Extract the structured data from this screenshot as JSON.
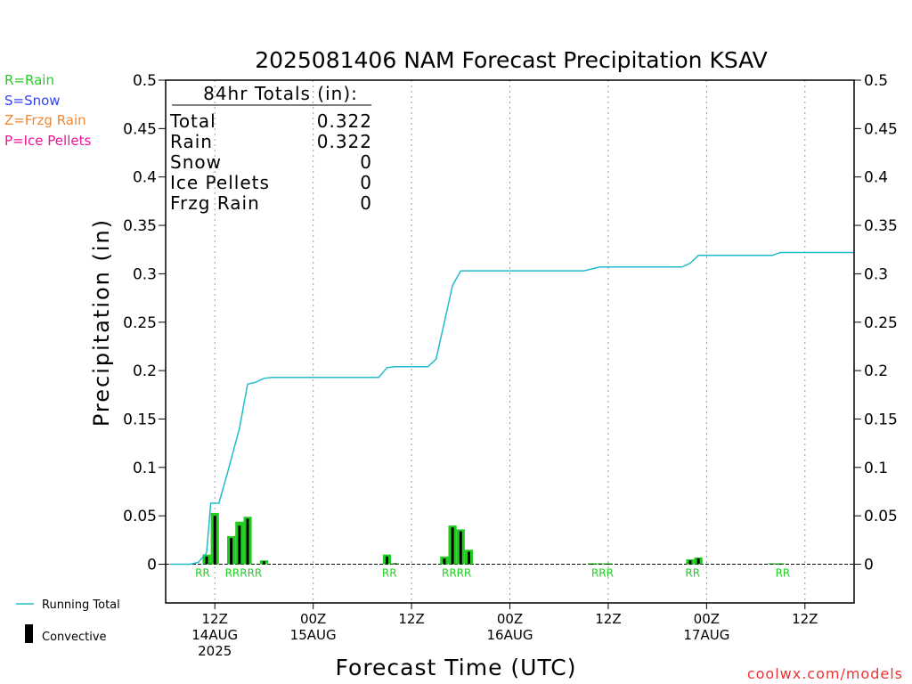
{
  "legend_types": [
    {
      "label": "R=Rain",
      "color": "#22cc22"
    },
    {
      "label": "S=Snow",
      "color": "#3344ee"
    },
    {
      "label": "Z=Frzg Rain",
      "color": "#ee8833"
    },
    {
      "label": "P=Ice Pellets",
      "color": "#ee1199"
    }
  ],
  "totals_box": {
    "header": "84hr Totals (in):",
    "rows": [
      {
        "label": "Total",
        "value": "0.322"
      },
      {
        "label": "Rain",
        "value": "0.322"
      },
      {
        "label": "Snow",
        "value": "0"
      },
      {
        "label": "Ice Pellets",
        "value": "0"
      },
      {
        "label": "Frzg Rain",
        "value": "0"
      }
    ]
  },
  "bottom_legend": {
    "running_total": "Running Total",
    "convective": "Convective"
  },
  "credit": "coolwx.com/models",
  "colors": {
    "running_total": "#22bbcc",
    "rain_bar": "#22cc22",
    "convective_bar": "#000000",
    "precip_label": "#22cc22",
    "credit": "#ee3333"
  },
  "chart_data": {
    "type": "bar",
    "title": "2025081406 NAM Forecast Precipitation KSAV",
    "xlabel": "Forecast Time (UTC)",
    "ylabel": "Precipitation (in)",
    "ylim": [
      -0.04,
      0.5
    ],
    "yticks": [
      0,
      0.05,
      0.1,
      0.15,
      0.2,
      0.25,
      0.3,
      0.35,
      0.4,
      0.45,
      0.5
    ],
    "ytick_labels": [
      "0",
      "0.05",
      "0.1",
      "0.15",
      "0.2",
      "0.25",
      "0.3",
      "0.35",
      "0.4",
      "0.45",
      "0.5"
    ],
    "xlim_hours": [
      0,
      84
    ],
    "xticks": [
      {
        "hour": 6,
        "lines": [
          "12Z",
          "14AUG",
          "2025"
        ]
      },
      {
        "hour": 18,
        "lines": [
          "00Z",
          "15AUG"
        ]
      },
      {
        "hour": 30,
        "lines": [
          "12Z"
        ]
      },
      {
        "hour": 42,
        "lines": [
          "00Z",
          "16AUG"
        ]
      },
      {
        "hour": 54,
        "lines": [
          "12Z"
        ]
      },
      {
        "hour": 66,
        "lines": [
          "00Z",
          "17AUG"
        ]
      },
      {
        "hour": 78,
        "lines": [
          "12Z"
        ]
      }
    ],
    "hourly_precip": [
      {
        "hour": 5,
        "total": 0.01,
        "convective": 0.008
      },
      {
        "hour": 6,
        "total": 0.053,
        "convective": 0.05
      },
      {
        "hour": 8,
        "total": 0.029,
        "convective": 0.027
      },
      {
        "hour": 9,
        "total": 0.044,
        "convective": 0.04
      },
      {
        "hour": 10,
        "total": 0.049,
        "convective": 0.047
      },
      {
        "hour": 12,
        "total": 0.004,
        "convective": 0.003
      },
      {
        "hour": 27,
        "total": 0.01,
        "convective": 0.008
      },
      {
        "hour": 28,
        "total": 0.001,
        "convective": 0.001
      },
      {
        "hour": 34,
        "total": 0.008,
        "convective": 0.006
      },
      {
        "hour": 35,
        "total": 0.04,
        "convective": 0.038
      },
      {
        "hour": 36,
        "total": 0.036,
        "convective": 0.034
      },
      {
        "hour": 37,
        "total": 0.015,
        "convective": 0.013
      },
      {
        "hour": 52,
        "total": 0.001,
        "convective": 0.0005
      },
      {
        "hour": 53,
        "total": 0.001,
        "convective": 0.0005
      },
      {
        "hour": 54,
        "total": 0.001,
        "convective": 0.0005
      },
      {
        "hour": 64,
        "total": 0.005,
        "convective": 0.004
      },
      {
        "hour": 65,
        "total": 0.007,
        "convective": 0.006
      },
      {
        "hour": 74,
        "total": 0.001,
        "convective": 0.0005
      },
      {
        "hour": 75,
        "total": 0.001,
        "convective": 0.0005
      }
    ],
    "precip_type_labels": [
      {
        "hour": 4.5,
        "text": "RR"
      },
      {
        "hour": 9.5,
        "text": "RRRRR"
      },
      {
        "hour": 27.3,
        "text": "RR"
      },
      {
        "hour": 35.5,
        "text": "RRRR"
      },
      {
        "hour": 53.3,
        "text": "RRR"
      },
      {
        "hour": 64.3,
        "text": "RR"
      },
      {
        "hour": 75.3,
        "text": "RR"
      }
    ],
    "running_total": [
      [
        0.5,
        0
      ],
      [
        3,
        0
      ],
      [
        4,
        0.002
      ],
      [
        5,
        0.012
      ],
      [
        5.5,
        0.063
      ],
      [
        6.5,
        0.063
      ],
      [
        7.5,
        0.093
      ],
      [
        9,
        0.14
      ],
      [
        10,
        0.186
      ],
      [
        11,
        0.188
      ],
      [
        12,
        0.192
      ],
      [
        13,
        0.193
      ],
      [
        26,
        0.193
      ],
      [
        27,
        0.203
      ],
      [
        28,
        0.204
      ],
      [
        32,
        0.204
      ],
      [
        33,
        0.212
      ],
      [
        34,
        0.25
      ],
      [
        35,
        0.288
      ],
      [
        36,
        0.303
      ],
      [
        38,
        0.303
      ],
      [
        51,
        0.303
      ],
      [
        52,
        0.305
      ],
      [
        53,
        0.307
      ],
      [
        63,
        0.307
      ],
      [
        64,
        0.311
      ],
      [
        65,
        0.319
      ],
      [
        74,
        0.319
      ],
      [
        75,
        0.322
      ],
      [
        84,
        0.322
      ]
    ]
  }
}
